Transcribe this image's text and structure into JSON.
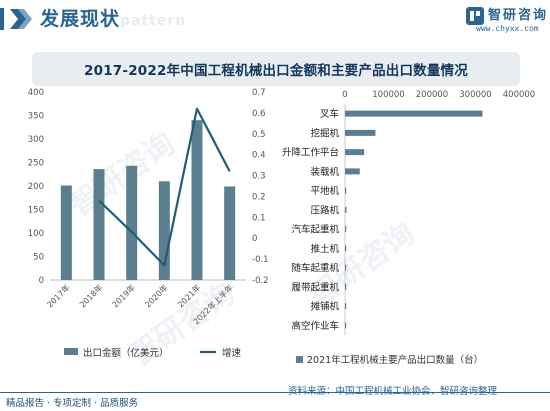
{
  "header": {
    "section_title": "发展现状",
    "watermark": "pattern",
    "brand_name": "智研咨询",
    "brand_url": "www.chyxx.com",
    "logo_text": "智研咨询"
  },
  "footer": {
    "left": "精品报告 · 专项定制 · 品质服务",
    "source": "资料来源：中国工程机械工业协会、智研咨询整理"
  },
  "colors": {
    "accent": "#2a6493",
    "bar": "#5b7f8f",
    "line": "#1f5d7a",
    "title_bg": "#e8edf2",
    "title_text": "#14365a"
  },
  "chart_data": [
    {
      "type": "bar",
      "title": "2017-2022年中国工程机械出口金额和主要产品出口数量情况",
      "categories": [
        "2017年",
        "2018年",
        "2019年",
        "2020年",
        "2021年",
        "2022年上半年"
      ],
      "series": [
        {
          "name": "出口金额（亿美元）",
          "axis": "left",
          "type": "bar",
          "values": [
            201,
            236,
            243,
            210,
            340,
            199
          ]
        },
        {
          "name": "增速",
          "axis": "right",
          "type": "line",
          "values": [
            null,
            0.18,
            0.03,
            -0.13,
            0.62,
            0.32
          ]
        }
      ],
      "y_left": {
        "min": 0,
        "max": 400,
        "ticks": [
          0,
          50,
          100,
          150,
          200,
          250,
          300,
          350,
          400
        ]
      },
      "y_right": {
        "min": -0.2,
        "max": 0.7,
        "ticks": [
          "-0.2",
          "-0.1",
          "0",
          "0.1",
          "0.2",
          "0.3",
          "0.4",
          "0.5",
          "0.6",
          "0.7"
        ]
      },
      "legend_position": "bottom",
      "grid": false
    },
    {
      "type": "bar",
      "orientation": "horizontal",
      "categories": [
        "叉车",
        "挖掘机",
        "升降工作平台",
        "装载机",
        "平地机",
        "压路机",
        "汽车起重机",
        "推土机",
        "随车起重机",
        "履带起重机",
        "摊铺机",
        "高空作业车"
      ],
      "series": [
        {
          "name": "2021年工程机械主要产品出口数量（台）",
          "values": [
            316000,
            70000,
            44000,
            34000,
            2500,
            3200,
            2800,
            2600,
            1800,
            1200,
            900,
            600
          ]
        }
      ],
      "x": {
        "min": 0,
        "max": 400000,
        "ticks": [
          "0",
          "100000",
          "200000",
          "300000",
          "400000"
        ]
      },
      "legend_position": "bottom",
      "grid": false
    }
  ]
}
